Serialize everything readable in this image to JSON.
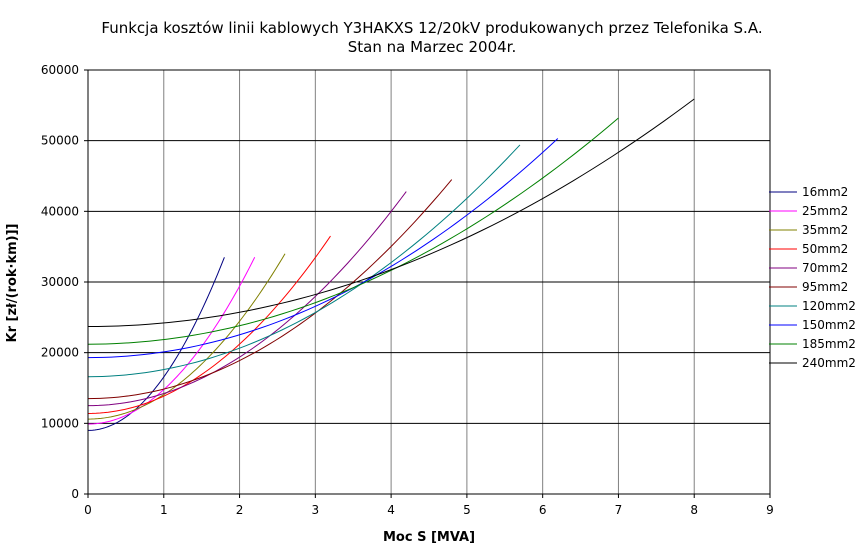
{
  "chart_data": {
    "type": "line",
    "title_lines": [
      "Funkcja kosztów linii kablowych Y3HAKXS 12/20kV produkowanych przez Telefonika  S.A.",
      "Stan na Marzec 2004r."
    ],
    "xlabel": "Moc S [MVA]",
    "ylabel": "Kr [zł/(rok·km)]]",
    "xlim": [
      0,
      9
    ],
    "ylim": [
      0,
      60000
    ],
    "x_ticks": [
      0,
      1,
      2,
      3,
      4,
      5,
      6,
      7,
      8,
      9
    ],
    "y_ticks": [
      0,
      10000,
      20000,
      30000,
      40000,
      50000,
      60000
    ],
    "grid": {
      "vertical": true,
      "horizontal": true
    },
    "legend_position": "right",
    "series": [
      {
        "name": "16mm2",
        "color": "#000080",
        "x_max": 1.8,
        "y0": 9000,
        "y_end": 33500
      },
      {
        "name": "25mm2",
        "color": "#ff00ff",
        "x_max": 2.2,
        "y0": 9900,
        "y_end": 33500
      },
      {
        "name": "35mm2",
        "color": "#808000",
        "x_max": 2.6,
        "y0": 10600,
        "y_end": 34000
      },
      {
        "name": "50mm2",
        "color": "#ff0000",
        "x_max": 3.2,
        "y0": 11400,
        "y_end": 36500
      },
      {
        "name": "70mm2",
        "color": "#800080",
        "x_max": 4.2,
        "y0": 12500,
        "y_end": 42800
      },
      {
        "name": "95mm2",
        "color": "#800000",
        "x_max": 4.8,
        "y0": 13500,
        "y_end": 44500
      },
      {
        "name": "120mm2",
        "color": "#008080",
        "x_max": 5.7,
        "y0": 16600,
        "y_end": 49400
      },
      {
        "name": "150mm2",
        "color": "#0000ff",
        "x_max": 6.2,
        "y0": 19300,
        "y_end": 50300
      },
      {
        "name": "185mm2",
        "color": "#008000",
        "x_max": 7.0,
        "y0": 21200,
        "y_end": 53200
      },
      {
        "name": "240mm2",
        "color": "#000000",
        "x_max": 8.0,
        "y0": 23700,
        "y_end": 55900
      }
    ]
  }
}
